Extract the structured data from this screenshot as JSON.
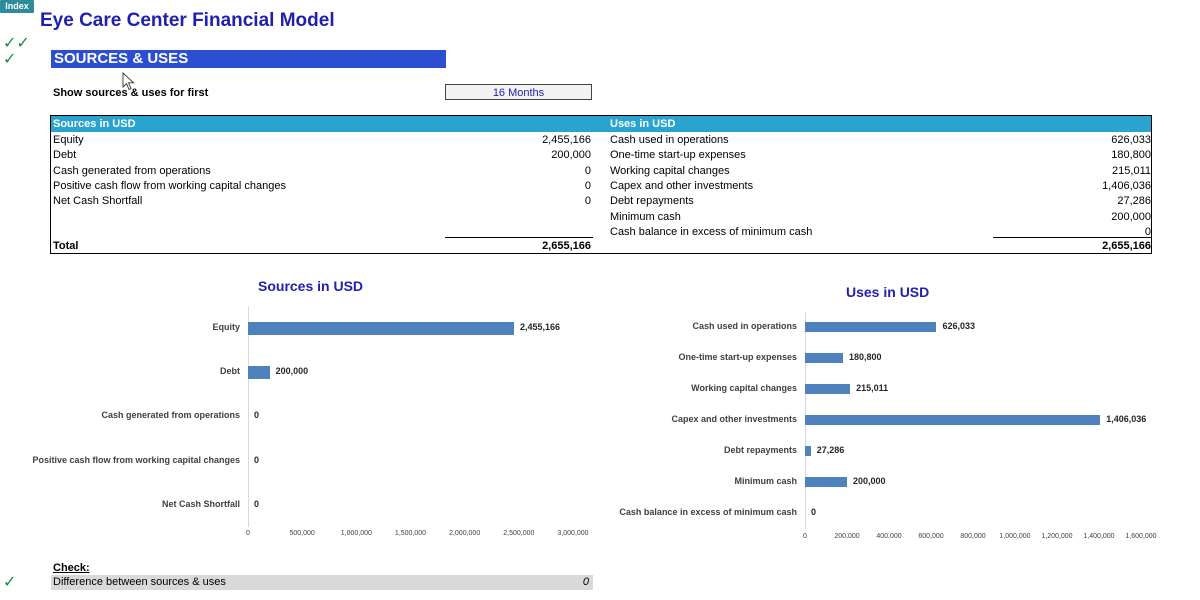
{
  "index_button": "Index",
  "title": "Eye Care Center Financial Model",
  "checkmarks": {
    "top_row1": "✓✓",
    "top_row2": "✓",
    "bottom": "✓"
  },
  "section_header": "SOURCES & USES",
  "show_for": {
    "label": "Show sources & uses for first",
    "value": "16 Months"
  },
  "sources_table": {
    "header": "Sources in USD",
    "rows": [
      {
        "label": "Equity",
        "value": "2,455,166"
      },
      {
        "label": "Debt",
        "value": "200,000"
      },
      {
        "label": "Cash generated from operations",
        "value": "0"
      },
      {
        "label": "Positive cash flow from working capital changes",
        "value": "0"
      },
      {
        "label": "Net Cash Shortfall",
        "value": "0"
      }
    ],
    "total_label": "Total",
    "total_value": "2,655,166"
  },
  "uses_table": {
    "header": "Uses in USD",
    "rows": [
      {
        "label": "Cash used in operations",
        "value": "626,033"
      },
      {
        "label": "One-time start-up expenses",
        "value": "180,800"
      },
      {
        "label": "Working capital changes",
        "value": "215,011"
      },
      {
        "label": "Capex and other investments",
        "value": "1,406,036"
      },
      {
        "label": "Debt repayments",
        "value": "27,286"
      },
      {
        "label": "Minimum cash",
        "value": "200,000"
      },
      {
        "label": "Cash balance in excess of minimum cash",
        "value": "0"
      }
    ],
    "total_value": "2,655,166"
  },
  "chart_data": [
    {
      "type": "bar",
      "orientation": "horizontal",
      "title": "Sources in USD",
      "categories": [
        "Equity",
        "Debt",
        "Cash generated from operations",
        "Positive cash flow from working capital changes",
        "Net Cash Shortfall"
      ],
      "values": [
        2455166,
        200000,
        0,
        0,
        0
      ],
      "value_labels": [
        "2,455,166",
        "200,000",
        "0",
        "0",
        "0"
      ],
      "xlim": [
        0,
        3000000
      ],
      "ticks": [
        "0",
        "500,000",
        "1,000,000",
        "1,500,000",
        "2,000,000",
        "2,500,000",
        "3,000,000"
      ],
      "color": "#4f81bd"
    },
    {
      "type": "bar",
      "orientation": "horizontal",
      "title": "Uses in USD",
      "categories": [
        "Cash used in operations",
        "One-time start-up expenses",
        "Working capital changes",
        "Capex and other investments",
        "Debt repayments",
        "Minimum cash",
        "Cash balance in excess of minimum cash"
      ],
      "values": [
        626033,
        180800,
        215011,
        1406036,
        27286,
        200000,
        0
      ],
      "value_labels": [
        "626,033",
        "180,800",
        "215,011",
        "1,406,036",
        "27,286",
        "200,000",
        "0"
      ],
      "xlim": [
        0,
        1600000
      ],
      "ticks": [
        "0",
        "200,000",
        "400,000",
        "600,000",
        "800,000",
        "1,000,000",
        "1,200,000",
        "1,400,000",
        "1,600,000"
      ],
      "color": "#4f81bd"
    }
  ],
  "check_section": {
    "label": "Check:",
    "row_label": "Difference between sources & uses",
    "row_value": "0"
  }
}
